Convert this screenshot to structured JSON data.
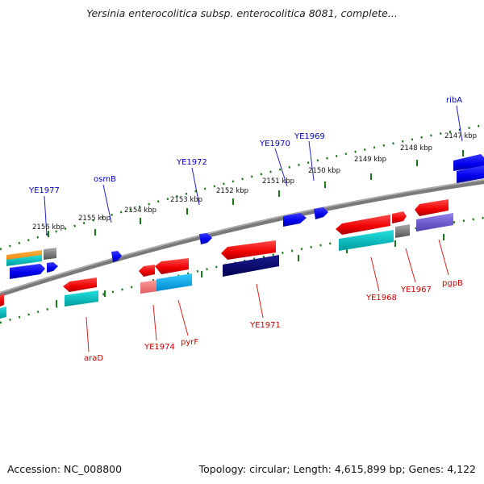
{
  "title": "Yersinia enterocolitica subsp. enterocolitica 8081, complete...",
  "footer": {
    "accession": "Accession: NC_008800",
    "summary": "Topology: circular; Length: 4,615,899 bp; Genes: 4,122"
  },
  "colors": {
    "background": "#ffffff",
    "backbone": "#808080",
    "upper_labels": "#0000bb",
    "lower_labels": "#cc0000",
    "tick_marks": "#1a7a1a"
  },
  "kbp_ticks": [
    "2156 kbp",
    "2155 kbp",
    "2154 kbp",
    "2153 kbp",
    "2152 kbp",
    "2151 kbp",
    "2150 kbp",
    "2149 kbp",
    "2148 kbp",
    "2147 kbp"
  ],
  "upper_gene_labels": [
    "YE1977",
    "osmB",
    "YE1972",
    "YE1970",
    "YE1969",
    "ribA"
  ],
  "lower_gene_labels": [
    "araD",
    "YE1974",
    "pyrF",
    "YE1971",
    "YE1968",
    "YE1967",
    "pgpB"
  ]
}
